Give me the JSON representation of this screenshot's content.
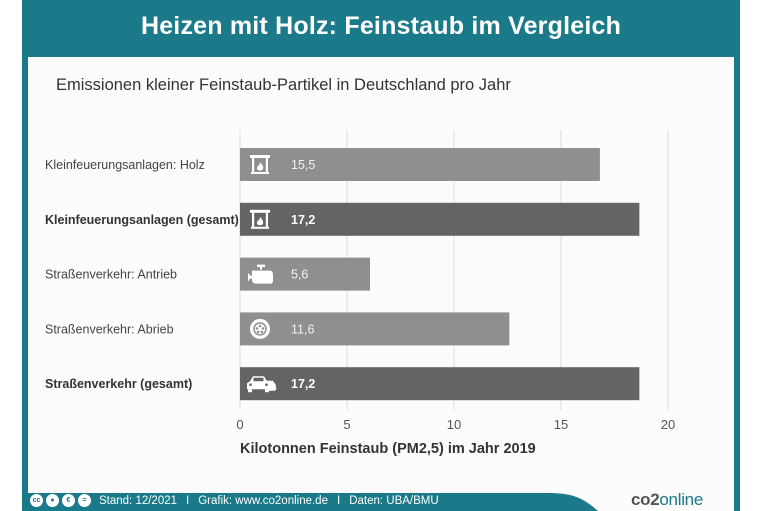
{
  "header": {
    "title": "Heizen mit Holz: Feinstaub im Vergleich",
    "subtitle": "Emissionen kleiner Feinstaub-Partikel in Deutschland pro Jahr"
  },
  "colors": {
    "brand_teal": "#1a7a89",
    "bar_light": "#8f8f8f",
    "bar_dark": "#646464"
  },
  "chart_data": {
    "type": "bar",
    "orientation": "horizontal",
    "title": "Emissionen kleiner Feinstaub-Partikel in Deutschland pro Jahr",
    "xlabel": "Kilotonnen Feinstaub (PM2,5) im Jahr 2019",
    "ylabel": "",
    "xlim": [
      0,
      20
    ],
    "xticks": [
      0,
      5,
      10,
      15,
      20
    ],
    "xtick_labels": [
      "0",
      "5",
      "10",
      "15",
      "20"
    ],
    "grid": true,
    "categories": [
      "Kleinfeuerungsanlagen: Holz",
      "Kleinfeuerungsanlagen (gesamt)",
      "Straßenverkehr: Antrieb",
      "Straßenverkehr: Abrieb",
      "Straßenverkehr (gesamt)"
    ],
    "values": [
      15.5,
      17.2,
      5.6,
      11.6,
      17.2
    ],
    "value_labels": [
      "15,5",
      "17,2",
      "5,6",
      "11,6",
      "17,2"
    ],
    "emphasis": [
      false,
      true,
      false,
      false,
      true
    ],
    "icons": [
      "fireplace-icon",
      "fireplace-icon",
      "engine-icon",
      "tire-icon",
      "cars-icon"
    ]
  },
  "footer": {
    "license_icons": [
      "cc-icon",
      "by-icon",
      "nc-icon",
      "nd-icon"
    ],
    "stand": "Stand: 12/2021",
    "grafik": "Grafik: www.co2online.de",
    "daten": "Daten: UBA/BMU",
    "separator": "I",
    "logo_part1": "co2",
    "logo_part2": "online"
  }
}
